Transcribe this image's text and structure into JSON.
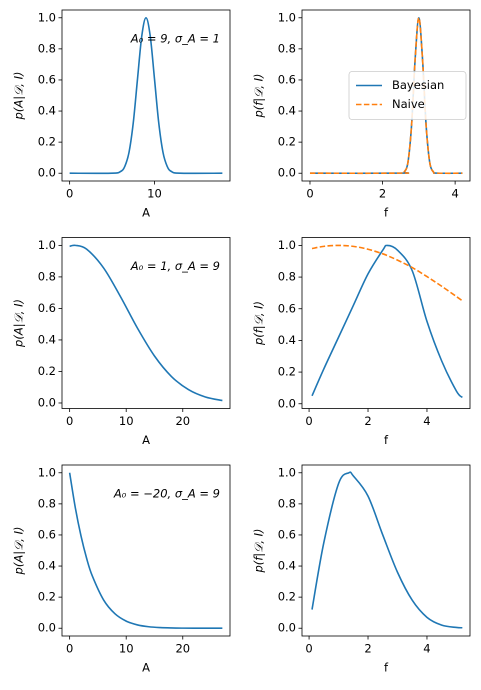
{
  "chart_data": [
    {
      "type": "line",
      "xlabel": "A",
      "ylabel": "p(A|𝒟, I)",
      "annotation": "A₀ = 9, σ_A = 1",
      "x": [
        0,
        5,
        6,
        6.5,
        7,
        7.5,
        8,
        8.5,
        9,
        9.5,
        10,
        10.5,
        11,
        11.5,
        12,
        13,
        18
      ],
      "series": [
        {
          "color": "#1f77b4",
          "linestyle": "solid",
          "values": [
            0,
            0.0003,
            0.011,
            0.044,
            0.135,
            0.325,
            0.607,
            0.882,
            1,
            0.882,
            0.607,
            0.325,
            0.135,
            0.044,
            0.011,
            0.0003,
            0
          ]
        }
      ],
      "xlim": [
        -0.9,
        18.9
      ],
      "xticks": [
        0,
        10
      ],
      "ylim": [
        -0.05,
        1.05
      ],
      "yticks": [
        {
          "value": 0,
          "label": "0.0"
        },
        0.2,
        0.4,
        0.6,
        0.8,
        {
          "value": 1,
          "label": "1.0"
        }
      ]
    },
    {
      "type": "line",
      "xlabel": "f",
      "ylabel": "p(f|𝒟, I)",
      "legend": "center right",
      "x": [
        0,
        2.5,
        2.6,
        2.7,
        2.8,
        2.9,
        3,
        3.1,
        3.2,
        3.3,
        3.4,
        3.5,
        4.2
      ],
      "series": [
        {
          "name": "Bayesian",
          "color": "#1f77b4",
          "linestyle": "solid",
          "values": [
            0,
            0.0006,
            0.009,
            0.07,
            0.31,
            0.74,
            1,
            0.74,
            0.31,
            0.07,
            0.009,
            0.0006,
            0
          ]
        },
        {
          "name": "Naive",
          "color": "#ff7f0e",
          "linestyle": "dashed",
          "values": [
            0,
            0.0006,
            0.009,
            0.07,
            0.31,
            0.74,
            1,
            0.74,
            0.31,
            0.07,
            0.009,
            0.0006,
            0
          ]
        }
      ],
      "xlim": [
        -0.22,
        4.41
      ],
      "xticks": [
        0,
        2,
        4
      ],
      "ylim": [
        -0.05,
        1.05
      ],
      "yticks": [
        {
          "value": 0,
          "label": "0.0"
        },
        0.2,
        0.4,
        0.6,
        0.8,
        {
          "value": 1,
          "label": "1.0"
        }
      ]
    },
    {
      "type": "line",
      "xlabel": "A",
      "ylabel": "p(A|𝒟, I)",
      "annotation": "A₀ = 1, σ_A = 9",
      "x": [
        0,
        1,
        3,
        6,
        9,
        12,
        15,
        18,
        21,
        24,
        27
      ],
      "series": [
        {
          "color": "#1f77b4",
          "linestyle": "solid",
          "values": [
            0.994,
            1,
            0.976,
            0.857,
            0.674,
            0.474,
            0.298,
            0.168,
            0.085,
            0.038,
            0.0154
          ]
        }
      ],
      "xlim": [
        -1.35,
        28.35
      ],
      "xticks": [
        0,
        10,
        20
      ],
      "ylim": [
        -0.035,
        1.05
      ],
      "yticks": [
        {
          "value": 0,
          "label": "0.0"
        },
        0.2,
        0.4,
        0.6,
        0.8,
        {
          "value": 1,
          "label": "1.0"
        }
      ]
    },
    {
      "type": "line",
      "xlabel": "f",
      "ylabel": "p(f|𝒟, I)",
      "x": [
        0.1,
        0.5,
        1,
        1.5,
        2,
        2.5,
        2.65,
        3,
        3.5,
        4,
        4.5,
        5,
        5.2
      ],
      "series": [
        {
          "color": "#1f77b4",
          "linestyle": "solid",
          "values": [
            0.05,
            0.22,
            0.42,
            0.62,
            0.82,
            0.97,
            1,
            0.97,
            0.84,
            0.52,
            0.27,
            0.08,
            0.04
          ]
        },
        {
          "color": "#ff7f0e",
          "linestyle": "dashed",
          "values": [
            0.98,
            0.994,
            1,
            0.994,
            0.976,
            0.947,
            0.936,
            0.907,
            0.86,
            0.803,
            0.742,
            0.677,
            0.65
          ]
        }
      ],
      "xlim": [
        -0.24,
        5.46
      ],
      "xticks": [
        0,
        2,
        4
      ],
      "ylim": [
        -0.03,
        1.05
      ],
      "yticks": [
        {
          "value": 0,
          "label": "0.0"
        },
        0.2,
        0.4,
        0.6,
        0.8,
        {
          "value": 1,
          "label": "1.0"
        }
      ]
    },
    {
      "type": "line",
      "xlabel": "A",
      "ylabel": "p(A|𝒟, I)",
      "annotation": "A₀ = −20, σ_A = 9",
      "x": [
        0,
        1,
        2,
        3,
        4,
        6,
        8,
        10,
        12,
        14,
        16,
        18,
        20,
        22,
        24,
        27
      ],
      "series": [
        {
          "color": "#1f77b4",
          "linestyle": "solid",
          "values": [
            1,
            0.776,
            0.595,
            0.45,
            0.337,
            0.182,
            0.0934,
            0.0457,
            0.0213,
            0.0094,
            0.004,
            0.0016,
            0.0006,
            0.0002,
            0.0001,
            0
          ]
        }
      ],
      "xlim": [
        -1.35,
        28.35
      ],
      "xticks": [
        0,
        10,
        20
      ],
      "ylim": [
        -0.05,
        1.05
      ],
      "yticks": [
        {
          "value": 0,
          "label": "0.0"
        },
        0.2,
        0.4,
        0.6,
        0.8,
        {
          "value": 1,
          "label": "1.0"
        }
      ]
    },
    {
      "type": "line",
      "xlabel": "f",
      "ylabel": "p(f|𝒟, I)",
      "x": [
        0.1,
        0.5,
        1,
        1.35,
        1.5,
        2,
        2.5,
        3,
        3.5,
        4,
        4.5,
        5,
        5.2
      ],
      "series": [
        {
          "color": "#1f77b4",
          "linestyle": "solid",
          "values": [
            0.12,
            0.55,
            0.93,
            1,
            0.98,
            0.85,
            0.6,
            0.36,
            0.18,
            0.07,
            0.02,
            0.005,
            0.003
          ]
        }
      ],
      "xlim": [
        -0.24,
        5.46
      ],
      "xticks": [
        0,
        2,
        4
      ],
      "ylim": [
        -0.05,
        1.05
      ],
      "yticks": [
        {
          "value": 0,
          "label": "0.0"
        },
        0.2,
        0.4,
        0.6,
        0.8,
        {
          "value": 1,
          "label": "1.0"
        }
      ]
    }
  ]
}
